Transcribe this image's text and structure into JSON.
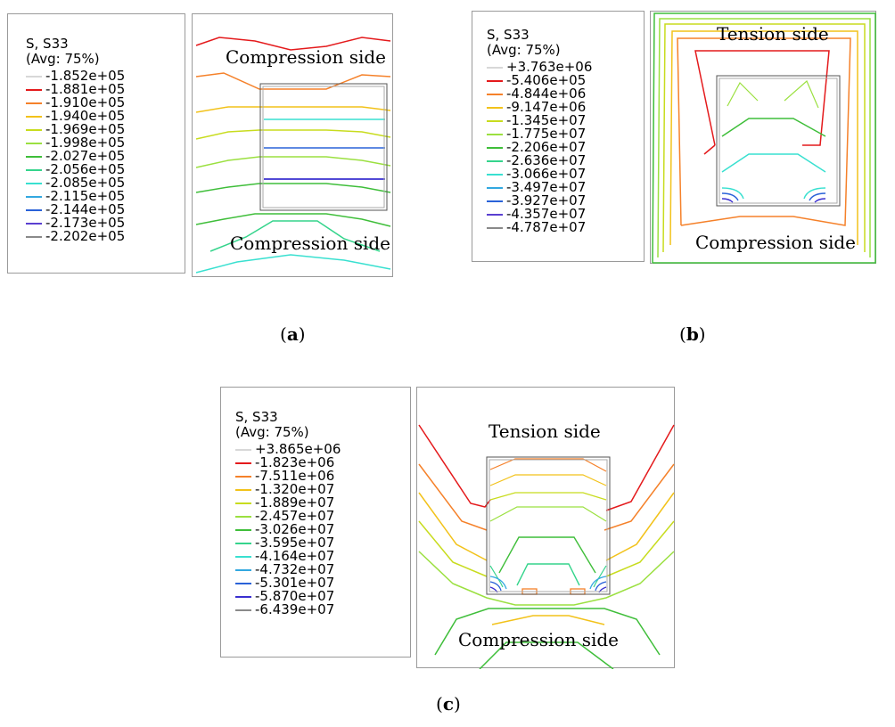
{
  "panels": [
    {
      "id": "a",
      "legend_title": "S, S33",
      "legend_subtitle": "(Avg: 75%)",
      "legend": [
        {
          "value": "-1.852e+05",
          "color": "#d8d8d8"
        },
        {
          "value": "-1.881e+05",
          "color": "#e41a1c"
        },
        {
          "value": "-1.910e+05",
          "color": "#f5812a"
        },
        {
          "value": "-1.940e+05",
          "color": "#f2c21a"
        },
        {
          "value": "-1.969e+05",
          "color": "#c8dc1e"
        },
        {
          "value": "-1.998e+05",
          "color": "#9be040"
        },
        {
          "value": "-2.027e+05",
          "color": "#3fbe3a"
        },
        {
          "value": "-2.056e+05",
          "color": "#35d48c"
        },
        {
          "value": "-2.085e+05",
          "color": "#39e0d0"
        },
        {
          "value": "-2.115e+05",
          "color": "#33a8e0"
        },
        {
          "value": "-2.144e+05",
          "color": "#2a62d8"
        },
        {
          "value": "-2.173e+05",
          "color": "#5a3fd0"
        },
        {
          "value": "-2.202e+05",
          "color": "#8a8a8a"
        }
      ],
      "top_label": "Compression side",
      "bottom_label": "Compression side",
      "caption_letter": "a"
    },
    {
      "id": "b",
      "legend_title": "S, S33",
      "legend_subtitle": "(Avg: 75%)",
      "legend": [
        {
          "value": "+3.763e+06",
          "color": "#d8d8d8"
        },
        {
          "value": "-5.406e+05",
          "color": "#e41a1c"
        },
        {
          "value": "-4.844e+06",
          "color": "#f5812a"
        },
        {
          "value": "-9.147e+06",
          "color": "#f2c21a"
        },
        {
          "value": "-1.345e+07",
          "color": "#c8dc1e"
        },
        {
          "value": "-1.775e+07",
          "color": "#9be040"
        },
        {
          "value": "-2.206e+07",
          "color": "#3fbe3a"
        },
        {
          "value": "-2.636e+07",
          "color": "#35d48c"
        },
        {
          "value": "-3.066e+07",
          "color": "#39e0d0"
        },
        {
          "value": "-3.497e+07",
          "color": "#33a8e0"
        },
        {
          "value": "-3.927e+07",
          "color": "#2a62d8"
        },
        {
          "value": "-4.357e+07",
          "color": "#5a3fd0"
        },
        {
          "value": "-4.787e+07",
          "color": "#8a8a8a"
        }
      ],
      "top_label": "Tension side",
      "bottom_label": "Compression side",
      "caption_letter": "b"
    },
    {
      "id": "c",
      "legend_title": "S, S33",
      "legend_subtitle": "(Avg: 75%)",
      "legend": [
        {
          "value": "+3.865e+06",
          "color": "#d8d8d8"
        },
        {
          "value": "-1.823e+06",
          "color": "#e41a1c"
        },
        {
          "value": "-7.511e+06",
          "color": "#f5812a"
        },
        {
          "value": "-1.320e+07",
          "color": "#f2c21a"
        },
        {
          "value": "-1.889e+07",
          "color": "#c8dc1e"
        },
        {
          "value": "-2.457e+07",
          "color": "#9be040"
        },
        {
          "value": "-3.026e+07",
          "color": "#3fbe3a"
        },
        {
          "value": "-3.595e+07",
          "color": "#35d48c"
        },
        {
          "value": "-4.164e+07",
          "color": "#39e0d0"
        },
        {
          "value": "-4.732e+07",
          "color": "#33a8e0"
        },
        {
          "value": "-5.301e+07",
          "color": "#2a62d8"
        },
        {
          "value": "-5.870e+07",
          "color": "#3a2fd0"
        },
        {
          "value": "-6.439e+07",
          "color": "#8a8a8a"
        }
      ],
      "top_label": "Tension side",
      "bottom_label": "Compression side",
      "caption_letter": "c"
    }
  ]
}
